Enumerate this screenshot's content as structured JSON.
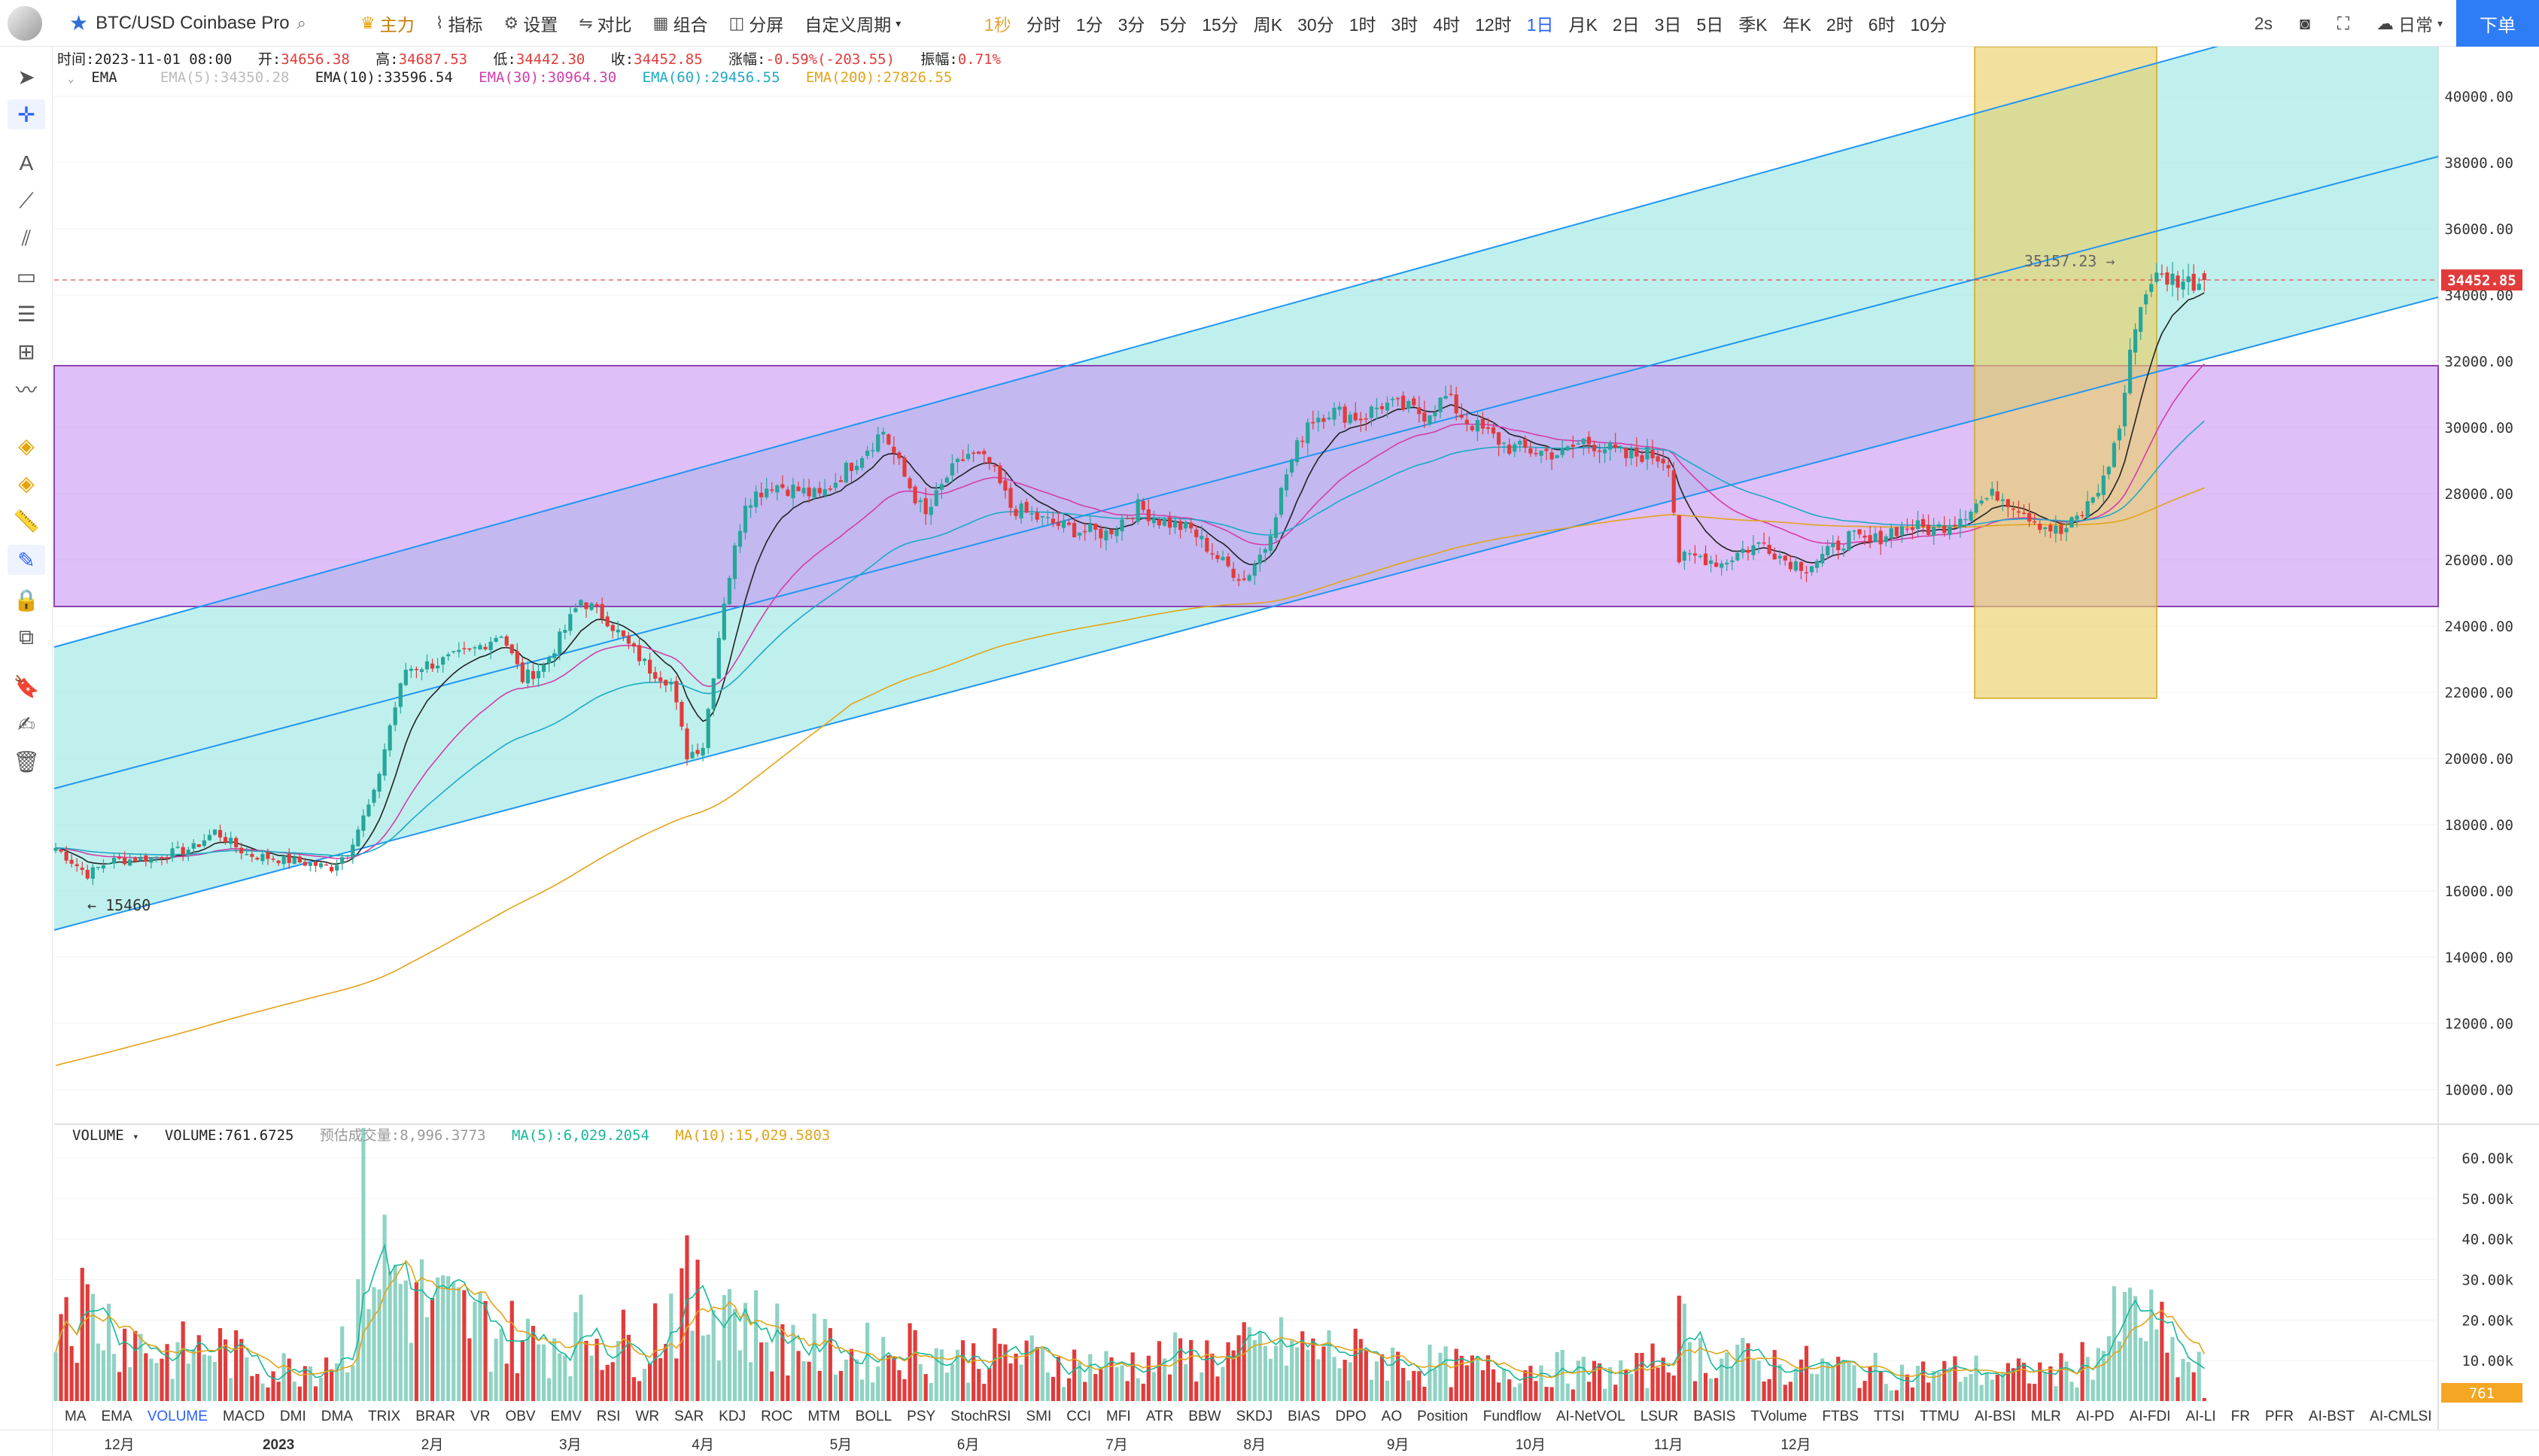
{
  "app": {
    "symbol": "BTC/USD Coinbase Pro",
    "toolbar": [
      {
        "icon": "crown-icon",
        "label": "主力"
      },
      {
        "icon": "indicator-icon",
        "label": "指标"
      },
      {
        "icon": "gear-icon",
        "label": "设置"
      },
      {
        "icon": "compare-icon",
        "label": "对比"
      },
      {
        "icon": "combo-icon",
        "label": "组合"
      },
      {
        "icon": "split-screen-icon",
        "label": "分屏"
      },
      {
        "icon": "",
        "label": "自定义周期"
      }
    ],
    "intervals": [
      "1秒",
      "分时",
      "1分",
      "3分",
      "5分",
      "15分",
      "周K",
      "30分",
      "1时",
      "3时",
      "4时",
      "12时",
      "1日",
      "月K",
      "2日",
      "3日",
      "5日",
      "季K",
      "年K",
      "2时",
      "6时",
      "10分"
    ],
    "active_interval": "1日",
    "dim_interval": "1秒",
    "refresh": "2s",
    "theme_label": "日常",
    "order_button": "下单"
  },
  "ohlc_info": {
    "time_label": "时间:",
    "time": "2023-11-01 08:00",
    "open_label": "开:",
    "open": "34656.38",
    "high_label": "高:",
    "high": "34687.53",
    "low_label": "低:",
    "low": "34442.30",
    "close_label": "收:",
    "close": "34452.85",
    "change_label": "涨幅:",
    "change": "-0.59%(-203.55)",
    "amplitude_label": "振幅:",
    "amplitude": "0.71%"
  },
  "ema_info": {
    "name": "EMA",
    "items": [
      {
        "label": "EMA(5):34350.28",
        "color": "#bbbbbb"
      },
      {
        "label": "EMA(10):33596.54",
        "color": "#222222"
      },
      {
        "label": "EMA(30):30964.30",
        "color": "#d23ea9"
      },
      {
        "label": "EMA(60):29456.55",
        "color": "#1ea9c6"
      },
      {
        "label": "EMA(200):27826.55",
        "color": "#e2a41a"
      }
    ]
  },
  "volume_info": {
    "name": "VOLUME",
    "value": "VOLUME:761.6725",
    "estimate": "预估成交量:8,996.3773",
    "ma5": "MA(5):6,029.2054",
    "ma10": "MA(10):15,029.5803"
  },
  "annotations": {
    "high_marker": "35157.23 →",
    "low_marker": "← 15460",
    "current_price": "34452.85",
    "current_volume": "761"
  },
  "indicator_tabs": [
    "MA",
    "EMA",
    "VOLUME",
    "MACD",
    "DMI",
    "DMA",
    "TRIX",
    "BRAR",
    "VR",
    "OBV",
    "EMV",
    "RSI",
    "WR",
    "SAR",
    "KDJ",
    "ROC",
    "MTM",
    "BOLL",
    "PSY",
    "StochRSI",
    "SMI",
    "CCI",
    "MFI",
    "ATR",
    "BBW",
    "SKDJ",
    "BIAS",
    "DPO",
    "AO",
    "Position",
    "Fundflow",
    "AI-NetVOL",
    "LSUR",
    "BASIS",
    "TVolume",
    "FTBS",
    "TTSI",
    "TTMU",
    "AI-BSI",
    "MLR",
    "AI-PD",
    "AI-FDI",
    "AI-LI",
    "FR",
    "PFR",
    "AI-BST",
    "AI-CMLSI"
  ],
  "selected_tab": "VOLUME",
  "chart_data": {
    "type": "candlestick",
    "y_ticks": [
      "40000.00",
      "38000.00",
      "36000.00",
      "34000.00",
      "32000.00",
      "30000.00",
      "28000.00",
      "26000.00",
      "24000.00",
      "22000.00",
      "20000.00",
      "18000.00",
      "16000.00",
      "14000.00",
      "12000.00",
      "10000.00"
    ],
    "y_range": [
      9000,
      41500
    ],
    "volume_ticks": [
      "60.00k",
      "50.00k",
      "40.00k",
      "30.00k",
      "20.00k",
      "10.00k"
    ],
    "volume_range": [
      0,
      65000
    ],
    "x_ticks": [
      "12月",
      "2023",
      "2月",
      "3月",
      "4月",
      "5月",
      "6月",
      "7月",
      "8月",
      "9月",
      "10月",
      "11月",
      "12月"
    ],
    "series": [
      "EMA(5)",
      "EMA(10)",
      "EMA(30)",
      "EMA(60)",
      "EMA(200)"
    ],
    "colors": {
      "up": "#26a69a",
      "down": "#e23b3b",
      "ema10": "#222222",
      "ema30": "#d23ea9",
      "ema60": "#1ea9c6",
      "ema200": "#e2a41a",
      "channel_fill": "#9ee8e4",
      "channel_line": "#2196f3",
      "purple_box": "#c48bf2",
      "yellow_box": "#e9cf6a",
      "current_price_bg": "#e23b3b"
    },
    "anchor_closes": [
      [
        0,
        17300
      ],
      [
        6,
        16500
      ],
      [
        10,
        16900
      ],
      [
        18,
        17000
      ],
      [
        26,
        17300
      ],
      [
        30,
        17800
      ],
      [
        36,
        17100
      ],
      [
        45,
        16900
      ],
      [
        52,
        16700
      ],
      [
        55,
        17200
      ],
      [
        60,
        18900
      ],
      [
        63,
        21000
      ],
      [
        66,
        22700
      ],
      [
        72,
        22900
      ],
      [
        78,
        23200
      ],
      [
        84,
        23800
      ],
      [
        88,
        22400
      ],
      [
        92,
        22800
      ],
      [
        96,
        23900
      ],
      [
        99,
        24800
      ],
      [
        104,
        24200
      ],
      [
        108,
        23400
      ],
      [
        112,
        22700
      ],
      [
        116,
        22300
      ],
      [
        119,
        20100
      ],
      [
        122,
        20400
      ],
      [
        126,
        24800
      ],
      [
        130,
        27800
      ],
      [
        135,
        28300
      ],
      [
        140,
        28100
      ],
      [
        144,
        27900
      ],
      [
        150,
        28900
      ],
      [
        156,
        29900
      ],
      [
        160,
        28500
      ],
      [
        164,
        27300
      ],
      [
        168,
        28500
      ],
      [
        172,
        29200
      ],
      [
        176,
        28900
      ],
      [
        180,
        27600
      ],
      [
        186,
        27200
      ],
      [
        192,
        26900
      ],
      [
        198,
        26800
      ],
      [
        204,
        27600
      ],
      [
        208,
        27200
      ],
      [
        214,
        26900
      ],
      [
        220,
        25900
      ],
      [
        224,
        25400
      ],
      [
        228,
        26400
      ],
      [
        232,
        28600
      ],
      [
        236,
        30200
      ],
      [
        240,
        30500
      ],
      [
        246,
        30300
      ],
      [
        250,
        30700
      ],
      [
        254,
        30600
      ],
      [
        258,
        30400
      ],
      [
        262,
        30900
      ],
      [
        266,
        30200
      ],
      [
        270,
        29800
      ],
      [
        274,
        29400
      ],
      [
        278,
        29300
      ],
      [
        284,
        29200
      ],
      [
        288,
        29600
      ],
      [
        292,
        29400
      ],
      [
        296,
        29100
      ],
      [
        300,
        29200
      ],
      [
        304,
        29000
      ],
      [
        306,
        26000
      ],
      [
        310,
        26100
      ],
      [
        314,
        25900
      ],
      [
        318,
        26300
      ],
      [
        322,
        26500
      ],
      [
        326,
        26000
      ],
      [
        330,
        25800
      ],
      [
        334,
        26200
      ],
      [
        338,
        26700
      ],
      [
        342,
        26500
      ],
      [
        346,
        26900
      ],
      [
        350,
        27000
      ],
      [
        354,
        26900
      ],
      [
        358,
        27200
      ],
      [
        362,
        27700
      ],
      [
        366,
        28000
      ],
      [
        370,
        27600
      ],
      [
        374,
        27100
      ],
      [
        378,
        26800
      ],
      [
        382,
        27400
      ],
      [
        386,
        28400
      ],
      [
        389,
        30000
      ],
      [
        392,
        33200
      ],
      [
        395,
        34500
      ],
      [
        399,
        34500
      ],
      [
        402,
        34400
      ],
      [
        405,
        34400
      ]
    ],
    "volume_anchors": [
      [
        0,
        30000
      ],
      [
        10,
        20000
      ],
      [
        20,
        12000
      ],
      [
        30,
        14000
      ],
      [
        40,
        8000
      ],
      [
        50,
        10000
      ],
      [
        56,
        18000
      ],
      [
        58,
        45000
      ],
      [
        62,
        35000
      ],
      [
        66,
        30000
      ],
      [
        70,
        25000
      ],
      [
        80,
        20000
      ],
      [
        90,
        15000
      ],
      [
        100,
        18000
      ],
      [
        110,
        14000
      ],
      [
        118,
        28000
      ],
      [
        122,
        22000
      ],
      [
        126,
        30000
      ],
      [
        130,
        20000
      ],
      [
        140,
        15000
      ],
      [
        150,
        12000
      ],
      [
        160,
        14000
      ],
      [
        170,
        11000
      ],
      [
        180,
        12000
      ],
      [
        190,
        10000
      ],
      [
        200,
        9000
      ],
      [
        210,
        11000
      ],
      [
        220,
        12000
      ],
      [
        230,
        14000
      ],
      [
        240,
        13000
      ],
      [
        250,
        11000
      ],
      [
        260,
        9000
      ],
      [
        270,
        8000
      ],
      [
        280,
        9000
      ],
      [
        290,
        7000
      ],
      [
        300,
        8000
      ],
      [
        306,
        18000
      ],
      [
        310,
        12000
      ],
      [
        320,
        10000
      ],
      [
        330,
        9000
      ],
      [
        340,
        8000
      ],
      [
        350,
        7000
      ],
      [
        360,
        8000
      ],
      [
        370,
        7000
      ],
      [
        380,
        8000
      ],
      [
        386,
        15000
      ],
      [
        389,
        20000
      ],
      [
        392,
        22000
      ],
      [
        396,
        18000
      ],
      [
        400,
        10000
      ],
      [
        405,
        8000
      ]
    ]
  }
}
